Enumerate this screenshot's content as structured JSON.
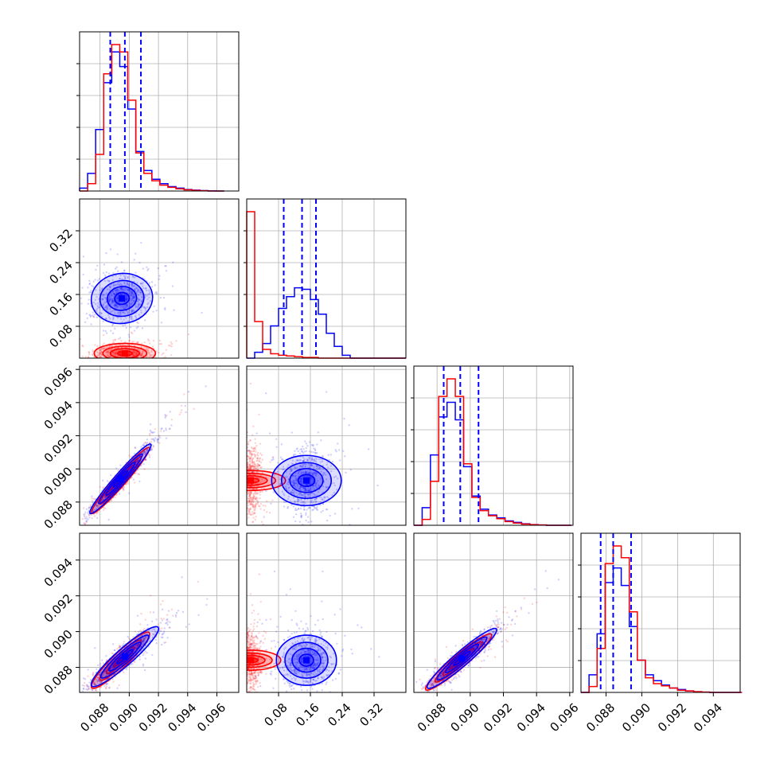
{
  "chart_data": {
    "type": "corner",
    "grid": true,
    "legend": "none",
    "series_colors": {
      "blue": "#0000ff",
      "red": "#ff0000"
    },
    "parameters": [
      {
        "range": [
          0.0866,
          0.0975
        ],
        "ticks": [
          "0.088",
          "0.090",
          "0.092",
          "0.094",
          "0.096"
        ]
      },
      {
        "range": [
          0.0,
          0.4
        ],
        "ticks": [
          "0.08",
          "0.16",
          "0.24",
          "0.32"
        ]
      },
      {
        "range": [
          0.0866,
          0.0962
        ],
        "ticks": [
          "0.088",
          "0.090",
          "0.092",
          "0.094",
          "0.096"
        ]
      },
      {
        "range": [
          0.0866,
          0.0955
        ],
        "ticks": [
          "0.088",
          "0.090",
          "0.092",
          "0.094"
        ]
      }
    ],
    "marginals": [
      {
        "bins": {
          "start": 0.0866,
          "width": 0.00055
        },
        "blue": [
          0.02,
          0.12,
          0.42,
          0.74,
          0.95,
          0.85,
          0.56,
          0.27,
          0.14,
          0.08,
          0.05,
          0.03,
          0.02,
          0.01,
          0.006,
          0.003,
          0.001,
          0.0
        ],
        "red": [
          0.0,
          0.05,
          0.25,
          0.8,
          1.0,
          0.95,
          0.62,
          0.26,
          0.12,
          0.07,
          0.04,
          0.025,
          0.015,
          0.008,
          0.004,
          0.002,
          0.0,
          0.0
        ],
        "quantiles_blue": [
          0.0887,
          0.0897,
          0.0908
        ]
      },
      {
        "bins": {
          "start": 0.0,
          "width": 0.02
        },
        "blue": [
          0.0,
          0.04,
          0.1,
          0.22,
          0.34,
          0.42,
          0.48,
          0.47,
          0.4,
          0.3,
          0.17,
          0.08,
          0.02,
          0.0,
          0.0,
          0.0,
          0.0,
          0.0,
          0.0,
          0.0
        ],
        "red": [
          1.0,
          0.25,
          0.06,
          0.03,
          0.02,
          0.015,
          0.01,
          0.005,
          0.005,
          0.0,
          0.0,
          0.0,
          0.0,
          0.0,
          0.0,
          0.0,
          0.0,
          0.0,
          0.0,
          0.0
        ],
        "quantiles_blue": [
          0.093,
          0.139,
          0.174
        ]
      },
      {
        "bins": {
          "start": 0.0866,
          "width": 0.0005
        },
        "blue": [
          0.0,
          0.12,
          0.48,
          0.74,
          0.84,
          0.72,
          0.4,
          0.2,
          0.11,
          0.07,
          0.05,
          0.03,
          0.02,
          0.01,
          0.005,
          0.002,
          0.0,
          0.0,
          0.0
        ],
        "red": [
          0.0,
          0.04,
          0.3,
          0.88,
          1.0,
          0.88,
          0.42,
          0.19,
          0.1,
          0.065,
          0.045,
          0.025,
          0.015,
          0.008,
          0.004,
          0.002,
          0.0,
          0.0,
          0.0
        ],
        "quantiles_blue": [
          0.0884,
          0.0894,
          0.0905
        ]
      },
      {
        "bins": {
          "start": 0.0866,
          "width": 0.00045
        },
        "blue": [
          0.0,
          0.12,
          0.4,
          0.75,
          0.85,
          0.73,
          0.45,
          0.22,
          0.12,
          0.08,
          0.05,
          0.03,
          0.02,
          0.01,
          0.005,
          0.002,
          0.0,
          0.0,
          0.0,
          0.0
        ],
        "red": [
          0.0,
          0.04,
          0.3,
          0.88,
          1.0,
          0.92,
          0.55,
          0.22,
          0.1,
          0.06,
          0.045,
          0.03,
          0.015,
          0.01,
          0.005,
          0.002,
          0.0,
          0.0,
          0.0,
          0.0
        ],
        "quantiles_blue": [
          0.0877,
          0.0884,
          0.0894
        ]
      }
    ],
    "pairs": [
      {
        "x": 0,
        "y": 1,
        "blue": {
          "center": [
            0.0895,
            0.15
          ],
          "sd": [
            0.001,
            0.03
          ],
          "corr": 0.05
        },
        "red": {
          "center": [
            0.0897,
            0.012
          ],
          "sd": [
            0.001,
            0.012
          ],
          "corr": 0.0
        }
      },
      {
        "x": 0,
        "y": 2,
        "blue": {
          "center": [
            0.0894,
            0.0894
          ],
          "sd": [
            0.001,
            0.001
          ],
          "corr": 0.97
        },
        "red": {
          "center": [
            0.0894,
            0.0893
          ],
          "sd": [
            0.00095,
            0.00095
          ],
          "corr": 0.97
        }
      },
      {
        "x": 1,
        "y": 2,
        "blue": {
          "center": [
            0.15,
            0.0893
          ],
          "sd": [
            0.03,
            0.001
          ],
          "corr": 0.0
        },
        "red": {
          "center": [
            0.01,
            0.0893
          ],
          "sd": [
            0.012,
            0.001
          ],
          "corr": 0.0
        }
      },
      {
        "x": 0,
        "y": 3,
        "blue": {
          "center": [
            0.0897,
            0.0886
          ],
          "sd": [
            0.0011,
            0.0008
          ],
          "corr": 0.93
        },
        "red": {
          "center": [
            0.0894,
            0.0884
          ],
          "sd": [
            0.00095,
            0.00075
          ],
          "corr": 0.93
        }
      },
      {
        "x": 1,
        "y": 3,
        "blue": {
          "center": [
            0.15,
            0.0884
          ],
          "sd": [
            0.03,
            0.0008
          ],
          "corr": 0.0
        },
        "red": {
          "center": [
            0.01,
            0.0884
          ],
          "sd": [
            0.012,
            0.0008
          ],
          "corr": 0.0
        }
      },
      {
        "x": 2,
        "y": 3,
        "blue": {
          "center": [
            0.0895,
            0.0885
          ],
          "sd": [
            0.001,
            0.0008
          ],
          "corr": 0.95
        },
        "red": {
          "center": [
            0.0893,
            0.0883
          ],
          "sd": [
            0.00095,
            0.00075
          ],
          "corr": 0.95
        }
      }
    ]
  }
}
